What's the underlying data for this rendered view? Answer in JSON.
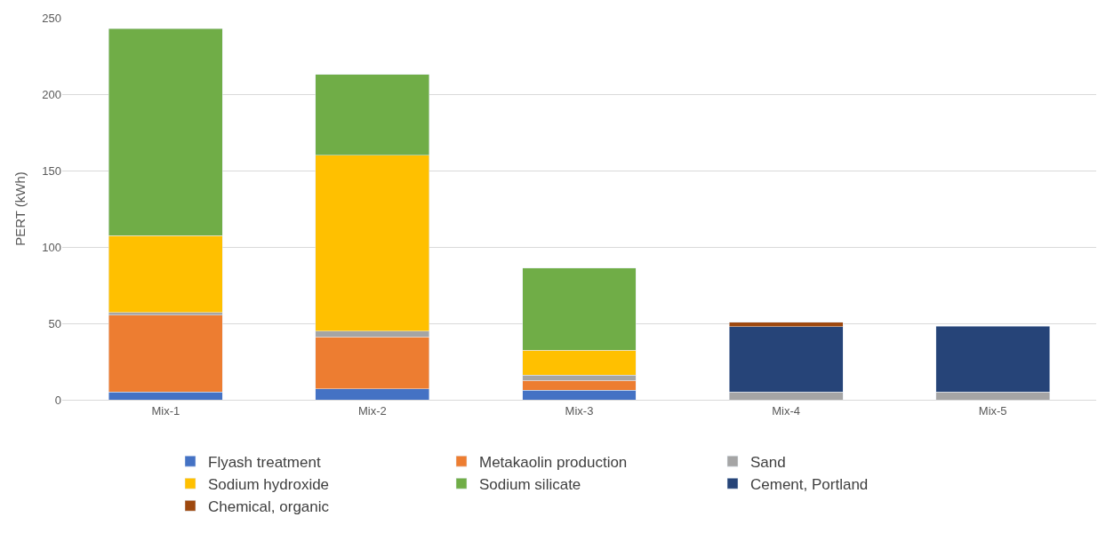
{
  "chart_data": {
    "type": "bar",
    "stacked": true,
    "ylabel": "PERT (kWh)",
    "categories": [
      "Mix-1",
      "Mix-2",
      "Mix-3",
      "Mix-4",
      "Mix-5"
    ],
    "series": [
      {
        "name": "Flyash treatment",
        "color": "#4472c4",
        "values": [
          5,
          7,
          6.3,
          null,
          null
        ]
      },
      {
        "name": "Metakaolin production",
        "color": "#ed7d31",
        "values": [
          50.5,
          34,
          6.4,
          null,
          null
        ]
      },
      {
        "name": "Sand",
        "color": "#a5a5a5",
        "values": [
          1.5,
          4,
          3.3,
          5,
          5
        ]
      },
      {
        "name": "Sodium hydroxide",
        "color": "#ffc000",
        "values": [
          50.5,
          115,
          16.5,
          null,
          null
        ]
      },
      {
        "name": "Sodium silicate",
        "color": "#70ad47",
        "values": [
          135.5,
          53,
          53.7,
          null,
          null
        ]
      },
      {
        "name": "Cement, Portland",
        "color": "#264478",
        "values": [
          null,
          null,
          null,
          42.7,
          43.2
        ]
      },
      {
        "name": "Chemical, organic",
        "color": "#9e480e",
        "values": [
          null,
          null,
          null,
          3,
          null
        ]
      }
    ],
    "ylim": [
      0,
      250
    ],
    "yticks": [
      0,
      50,
      100,
      150,
      200,
      250
    ],
    "grid": "y",
    "legend": "bottom"
  }
}
